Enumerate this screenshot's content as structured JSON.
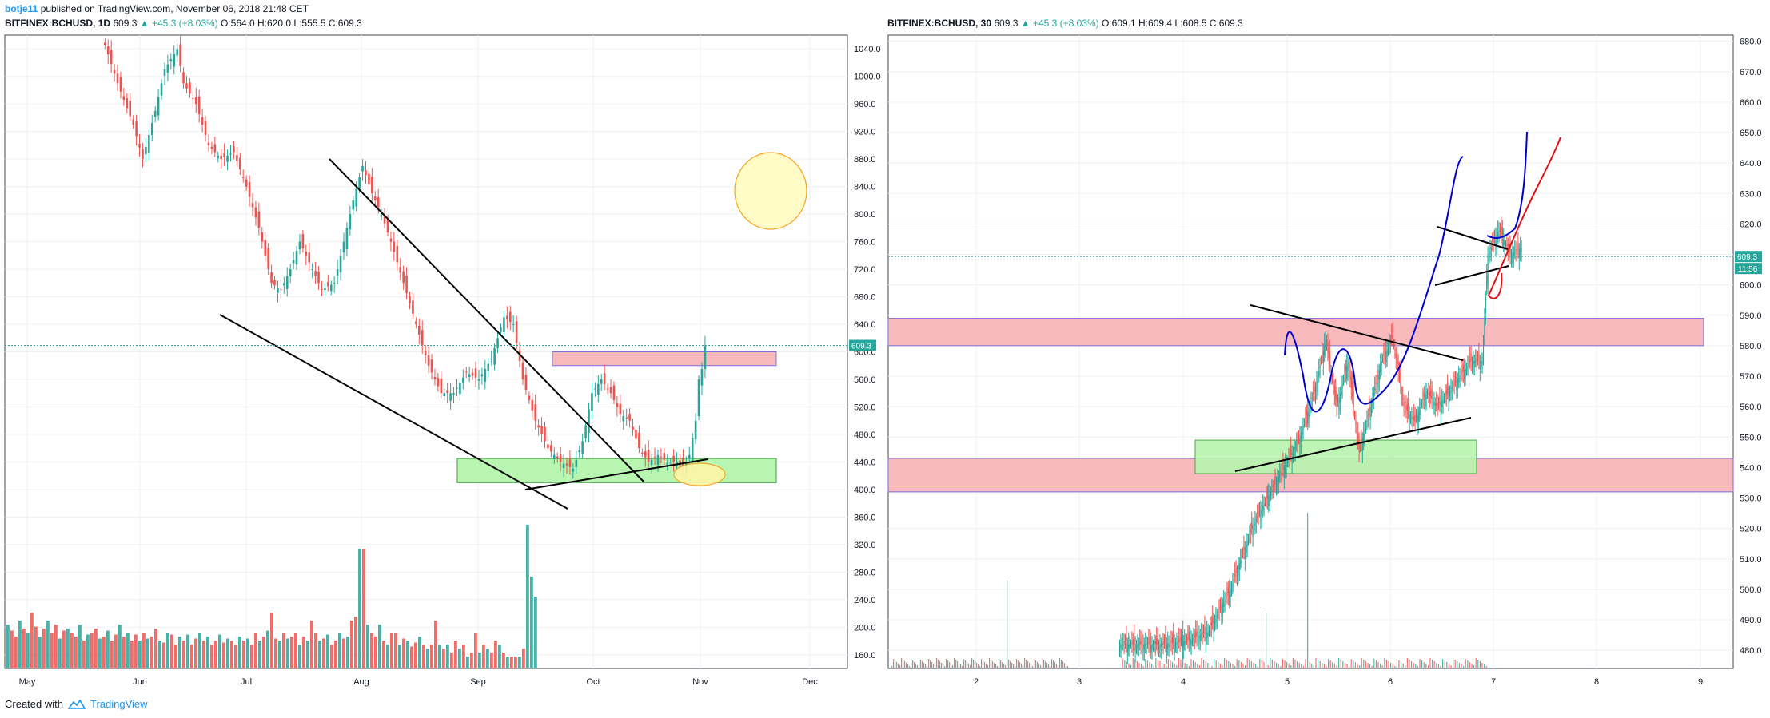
{
  "header": {
    "user": "botje11",
    "published_text": "published on TradingView.com, November 06, 2018 21:48 CET"
  },
  "left_header": {
    "symbol": "BITFINEX:BCHUSD, 1D",
    "price": "609.3",
    "change": "▲ +45.3 (+8.03%)",
    "ohlc": "O:564.0 H:620.0 L:555.5 C:609.3"
  },
  "right_header": {
    "symbol": "BITFINEX:BCHUSD, 30",
    "price": "609.3",
    "change": "▲ +45.3 (+8.03%)",
    "ohlc": "O:609.1 H:609.4 L:608.5 C:609.3"
  },
  "footer": {
    "created_with": "Created with",
    "brand": "TradingView"
  },
  "colors": {
    "up": "#26a69a",
    "down": "#ef5350",
    "price_label": "#26a69a",
    "resistance_zone": "#f8b9bd",
    "support_zone": "#b7f5b0",
    "projection_bull": "#0000cc",
    "projection_bear": "#e01010",
    "circle_fill": "#fffcc7",
    "circle_stroke": "#f6a21a"
  },
  "chart_data": [
    {
      "type": "candlestick",
      "name": "daily",
      "y_ticks": [
        "1040.0",
        "1000.0",
        "960.0",
        "920.0",
        "880.0",
        "840.0",
        "800.0",
        "760.0",
        "720.0",
        "680.0",
        "640.0",
        "600.0",
        "560.0",
        "520.0",
        "480.0",
        "440.0",
        "400.0",
        "360.0",
        "320.0",
        "280.0",
        "240.0",
        "200.0",
        "160.0"
      ],
      "x_ticks": [
        "May",
        "Jun",
        "Jul",
        "Aug",
        "Sep",
        "Oct",
        "Nov",
        "Dec"
      ],
      "ylim": [
        140,
        1060
      ],
      "last_price": "609.3",
      "price_path": [
        [
          0,
          1060
        ],
        [
          5,
          990
        ],
        [
          10,
          930
        ],
        [
          13,
          880
        ],
        [
          17,
          950
        ],
        [
          20,
          1010
        ],
        [
          24,
          1040
        ],
        [
          26,
          990
        ],
        [
          30,
          960
        ],
        [
          34,
          900
        ],
        [
          38,
          880
        ],
        [
          42,
          890
        ],
        [
          46,
          840
        ],
        [
          50,
          780
        ],
        [
          54,
          700
        ],
        [
          57,
          690
        ],
        [
          60,
          720
        ],
        [
          63,
          760
        ],
        [
          66,
          730
        ],
        [
          70,
          690
        ],
        [
          74,
          700
        ],
        [
          77,
          760
        ],
        [
          80,
          820
        ],
        [
          83,
          870
        ],
        [
          86,
          830
        ],
        [
          89,
          800
        ],
        [
          92,
          760
        ],
        [
          96,
          700
        ],
        [
          100,
          640
        ],
        [
          104,
          580
        ],
        [
          108,
          540
        ],
        [
          112,
          540
        ],
        [
          116,
          570
        ],
        [
          120,
          560
        ],
        [
          124,
          590
        ],
        [
          128,
          650
        ],
        [
          131,
          640
        ],
        [
          134,
          560
        ],
        [
          138,
          500
        ],
        [
          142,
          460
        ],
        [
          146,
          440
        ],
        [
          150,
          430
        ],
        [
          153,
          470
        ],
        [
          156,
          540
        ],
        [
          159,
          560
        ],
        [
          162,
          540
        ],
        [
          165,
          510
        ],
        [
          168,
          500
        ],
        [
          171,
          460
        ],
        [
          174,
          440
        ],
        [
          177,
          450
        ],
        [
          180,
          440
        ],
        [
          183,
          440
        ],
        [
          185,
          430
        ],
        [
          187,
          450
        ],
        [
          189,
          500
        ],
        [
          190,
          560
        ],
        [
          191,
          575
        ],
        [
          192,
          609
        ]
      ],
      "volume": [
        110,
        95,
        80,
        120,
        100,
        90,
        140,
        105,
        80,
        100,
        120,
        90,
        110,
        75,
        95,
        100,
        90,
        80,
        110,
        70,
        85,
        90,
        100,
        75,
        80,
        95,
        70,
        85,
        110,
        80,
        90,
        70,
        85,
        70,
        90,
        75,
        80,
        100,
        70,
        65,
        90,
        85,
        60,
        80,
        70,
        85,
        60,
        75,
        90,
        70,
        80,
        60,
        70,
        85,
        65,
        75,
        70,
        60,
        80,
        70,
        75,
        60,
        90,
        70,
        80,
        95,
        140,
        75,
        70,
        90,
        75,
        80,
        90,
        60,
        80,
        70,
        120,
        90,
        70,
        75,
        85,
        60,
        70,
        90,
        75,
        80,
        120,
        130,
        300,
        300,
        110,
        90,
        80,
        110,
        70,
        60,
        90,
        90,
        60,
        75,
        70,
        55,
        65,
        80,
        60,
        50,
        60,
        120,
        60,
        50,
        60,
        40,
        70,
        50,
        60,
        30,
        40,
        90,
        40,
        60,
        50,
        40,
        70,
        60,
        40,
        30,
        30,
        30,
        30,
        50,
        360,
        230,
        180
      ],
      "resistance_zone": [
        600,
        580
      ],
      "support_zone": [
        445,
        410
      ]
    },
    {
      "type": "candlestick",
      "name": "30-minute",
      "y_ticks": [
        "680.0",
        "670.0",
        "660.0",
        "650.0",
        "640.0",
        "630.0",
        "620.0",
        "610.0",
        "600.0",
        "590.0",
        "580.0",
        "570.0",
        "560.0",
        "550.0",
        "540.0",
        "530.0",
        "520.0",
        "510.0",
        "500.0",
        "490.0",
        "480.0"
      ],
      "x_ticks": [
        "2",
        "3",
        "4",
        "5",
        "6",
        "7",
        "8",
        "9"
      ],
      "ylim": [
        474,
        682
      ],
      "last_price": "609.3",
      "countdown": "11:56",
      "resistance_zone": [
        589,
        580
      ],
      "support_zone": [
        543,
        532
      ],
      "green_box": [
        549,
        538
      ]
    }
  ]
}
